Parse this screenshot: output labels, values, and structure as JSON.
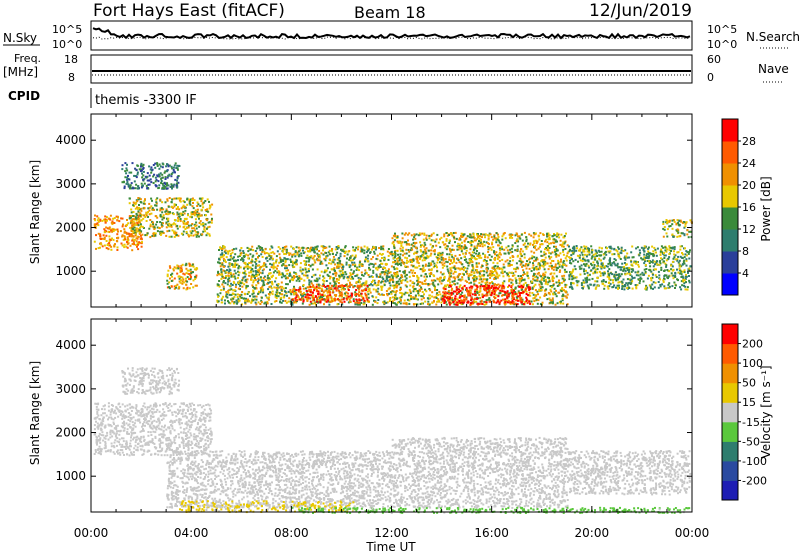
{
  "header": {
    "station": "Fort Hays East (fitACF)",
    "beam": "Beam 18",
    "date": "12/Jun/2019"
  },
  "noise_panel": {
    "left_label": "N.Sky",
    "right_label": "N.Search",
    "left_ticks": [
      "10^5",
      "10^0"
    ],
    "right_ticks": [
      "10^5",
      "10^0"
    ]
  },
  "freq_panel": {
    "left_label_1": "Freq.",
    "left_label_2": "[MHz]",
    "right_label": "Nave",
    "left_ticks": [
      "18",
      "8"
    ],
    "right_ticks": [
      "60",
      "0"
    ]
  },
  "cpid_panel": {
    "label": "CPID",
    "text": "themis -3300 IF"
  },
  "power_panel": {
    "ylabel": "Slant Range [km]",
    "colorbar_label": "Power [dB]",
    "colorbar_ticks": [
      "28",
      "24",
      "20",
      "16",
      "12",
      "8",
      "4"
    ],
    "colors": [
      "#0000ff",
      "#2a3f9a",
      "#2e7d6e",
      "#3a8a3a",
      "#e8c800",
      "#f09000",
      "#ff5a00",
      "#ff0000"
    ]
  },
  "velocity_panel": {
    "ylabel": "Slant Range [km]",
    "colorbar_label": "Velocity [m s⁻¹]",
    "colorbar_ticks": [
      "200",
      "100",
      "50",
      "15",
      "-15",
      "-50",
      "-100",
      "-200"
    ],
    "colors": [
      "#1e1eb4",
      "#2a4aa0",
      "#2e7d6e",
      "#5ac83c",
      "#c8c8c8",
      "#e8c800",
      "#f09000",
      "#ff5a00",
      "#ff0000"
    ]
  },
  "x_axis": {
    "label": "Time UT",
    "ticks": [
      "00:00",
      "04:00",
      "08:00",
      "12:00",
      "16:00",
      "20:00",
      "00:00"
    ]
  },
  "chart_data": [
    {
      "type": "heatmap",
      "title": "Power [dB]",
      "xlabel": "Time UT",
      "ylabel": "Slant Range [km]",
      "xlim": [
        0,
        24
      ],
      "ylim": [
        180,
        4600
      ],
      "yticks": [
        1000,
        2000,
        3000,
        4000
      ],
      "clim": [
        0,
        32
      ],
      "regions": [
        {
          "t": [
            0.1,
            2.0
          ],
          "range": [
            1500,
            2300
          ],
          "value": 22
        },
        {
          "t": [
            1.5,
            4.8
          ],
          "range": [
            1800,
            2700
          ],
          "value": 18
        },
        {
          "t": [
            1.2,
            3.5
          ],
          "range": [
            2900,
            3500
          ],
          "value": 10
        },
        {
          "t": [
            3.0,
            4.2
          ],
          "range": [
            600,
            1200
          ],
          "value": 20
        },
        {
          "t": [
            5.0,
            12.0
          ],
          "range": [
            250,
            1600
          ],
          "value": 16
        },
        {
          "t": [
            8.0,
            11.0
          ],
          "range": [
            300,
            700
          ],
          "value": 26
        },
        {
          "t": [
            12.0,
            19.0
          ],
          "range": [
            250,
            1900
          ],
          "value": 18
        },
        {
          "t": [
            14.0,
            17.5
          ],
          "range": [
            250,
            700
          ],
          "value": 30
        },
        {
          "t": [
            19.0,
            23.9
          ],
          "range": [
            600,
            1600
          ],
          "value": 14
        },
        {
          "t": [
            22.8,
            24.0
          ],
          "range": [
            1800,
            2200
          ],
          "value": 16
        }
      ]
    },
    {
      "type": "heatmap",
      "title": "Velocity [m s⁻¹]",
      "xlabel": "Time UT",
      "ylabel": "Slant Range [km]",
      "xlim": [
        0,
        24
      ],
      "ylim": [
        180,
        4600
      ],
      "yticks": [
        1000,
        2000,
        3000,
        4000
      ],
      "clim": [
        -200,
        200
      ],
      "regions": [
        {
          "t": [
            0.1,
            4.8
          ],
          "range": [
            1500,
            2700
          ],
          "value": 0
        },
        {
          "t": [
            1.2,
            3.5
          ],
          "range": [
            2900,
            3500
          ],
          "value": 0
        },
        {
          "t": [
            3.0,
            12.0
          ],
          "range": [
            300,
            1600
          ],
          "value": 0
        },
        {
          "t": [
            12.0,
            19.0
          ],
          "range": [
            300,
            1900
          ],
          "value": 0
        },
        {
          "t": [
            19.0,
            23.9
          ],
          "range": [
            600,
            1600
          ],
          "value": 0
        },
        {
          "t": [
            3.5,
            10.5
          ],
          "range": [
            200,
            450
          ],
          "value": 30
        },
        {
          "t": [
            8.0,
            23.9
          ],
          "range": [
            180,
            300
          ],
          "value": -40
        }
      ]
    }
  ]
}
